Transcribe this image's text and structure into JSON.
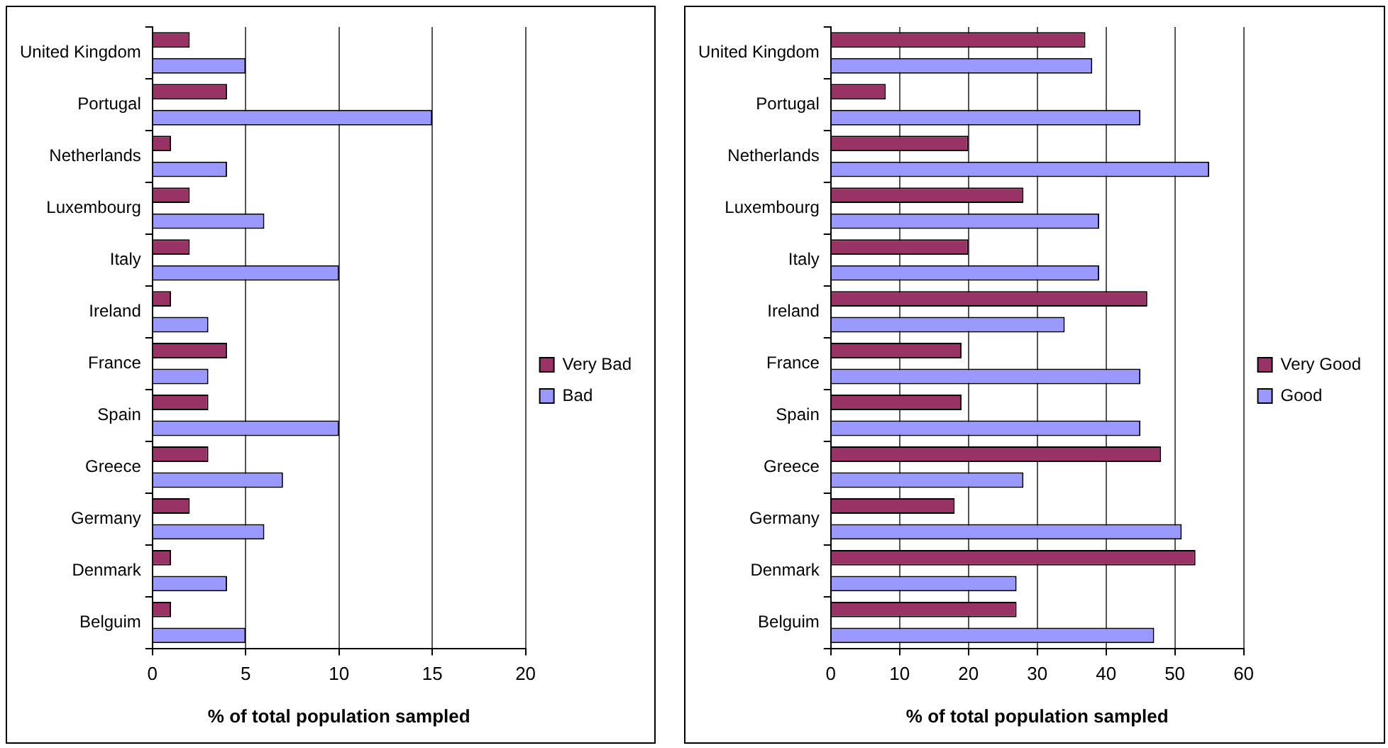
{
  "chart_data": [
    {
      "type": "bar",
      "orientation": "horizontal",
      "xlabel": "% of total population sampled",
      "categories": [
        "United Kingdom",
        "Portugal",
        "Netherlands",
        "Luxembourg",
        "Italy",
        "Ireland",
        "France",
        "Spain",
        "Greece",
        "Germany",
        "Denmark",
        "Belguim"
      ],
      "series": [
        {
          "name": "Very Bad",
          "color": "#993366",
          "values": [
            2,
            4,
            1,
            2,
            2,
            1,
            4,
            3,
            3,
            2,
            1,
            1
          ]
        },
        {
          "name": "Bad",
          "color": "#9999ff",
          "values": [
            5,
            15,
            4,
            6,
            10,
            3,
            3,
            10,
            7,
            6,
            4,
            5
          ]
        }
      ],
      "xlim": [
        0,
        20
      ],
      "xticks": [
        0,
        5,
        10,
        15,
        20
      ],
      "grid": "x",
      "legend": "right"
    },
    {
      "type": "bar",
      "orientation": "horizontal",
      "xlabel": "% of total population sampled",
      "categories": [
        "United Kingdom",
        "Portugal",
        "Netherlands",
        "Luxembourg",
        "Italy",
        "Ireland",
        "France",
        "Spain",
        "Greece",
        "Germany",
        "Denmark",
        "Belguim"
      ],
      "series": [
        {
          "name": "Very Good",
          "color": "#993366",
          "values": [
            37,
            8,
            20,
            28,
            20,
            46,
            19,
            19,
            48,
            18,
            53,
            27
          ]
        },
        {
          "name": "Good",
          "color": "#9999ff",
          "values": [
            38,
            45,
            55,
            39,
            39,
            34,
            45,
            45,
            28,
            51,
            27,
            47
          ]
        }
      ],
      "xlim": [
        0,
        60
      ],
      "xticks": [
        0,
        10,
        20,
        30,
        40,
        50,
        60
      ],
      "grid": "x",
      "legend": "right"
    }
  ]
}
